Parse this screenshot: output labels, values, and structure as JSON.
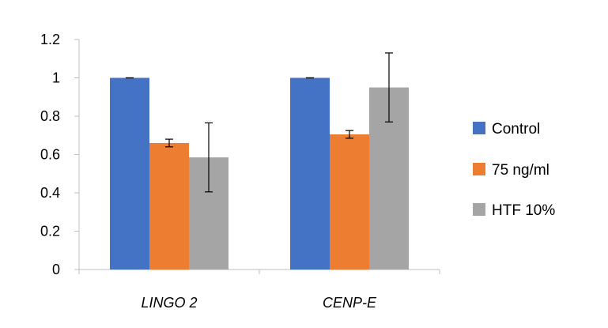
{
  "chart_data": {
    "type": "bar",
    "title": "",
    "xlabel": "",
    "ylabel": "",
    "ylim": [
      0,
      1.2
    ],
    "yticks": [
      0,
      0.2,
      0.4,
      0.6,
      0.8,
      1,
      1.2
    ],
    "ytick_labels": [
      "0",
      "0.2",
      "0.4",
      "0.6",
      "0.8",
      "1",
      "1.2"
    ],
    "categories": [
      "LINGO 2",
      "CENP-E"
    ],
    "series": [
      {
        "name": "Control",
        "color": "#4472C4",
        "values": [
          1.0,
          1.0
        ],
        "errors": [
          0.0,
          0.0
        ]
      },
      {
        "name": "75 ng/ml",
        "color": "#ED7D31",
        "values": [
          0.66,
          0.705
        ],
        "errors": [
          0.02,
          0.02
        ]
      },
      {
        "name": "HTF 10%",
        "color": "#A5A5A5",
        "values": [
          0.585,
          0.95
        ],
        "errors": [
          0.18,
          0.18
        ]
      }
    ],
    "grid": false,
    "legend_position": "right"
  }
}
